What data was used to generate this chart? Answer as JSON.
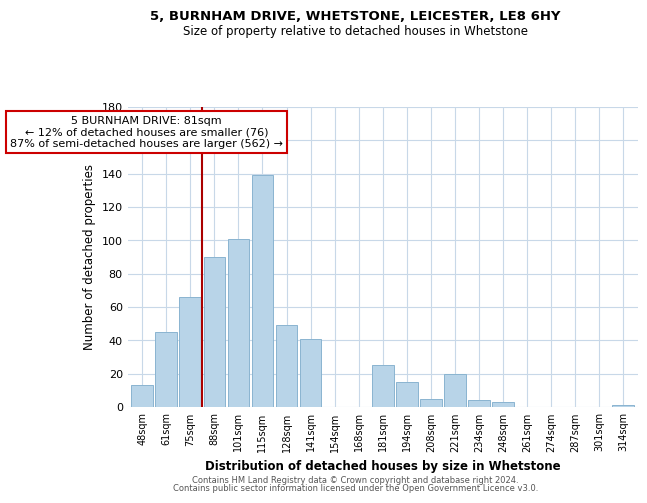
{
  "title1": "5, BURNHAM DRIVE, WHETSTONE, LEICESTER, LE8 6HY",
  "title2": "Size of property relative to detached houses in Whetstone",
  "xlabel": "Distribution of detached houses by size in Whetstone",
  "ylabel": "Number of detached properties",
  "categories": [
    "48sqm",
    "61sqm",
    "75sqm",
    "88sqm",
    "101sqm",
    "115sqm",
    "128sqm",
    "141sqm",
    "154sqm",
    "168sqm",
    "181sqm",
    "194sqm",
    "208sqm",
    "221sqm",
    "234sqm",
    "248sqm",
    "261sqm",
    "274sqm",
    "287sqm",
    "301sqm",
    "314sqm"
  ],
  "values": [
    13,
    45,
    66,
    90,
    101,
    139,
    49,
    41,
    0,
    0,
    25,
    15,
    5,
    20,
    4,
    3,
    0,
    0,
    0,
    0,
    1
  ],
  "bar_color": "#b8d4e8",
  "bar_edge_color": "#8ab4d0",
  "vline_color": "#aa0000",
  "annotation_text": "5 BURNHAM DRIVE: 81sqm\n← 12% of detached houses are smaller (76)\n87% of semi-detached houses are larger (562) →",
  "annotation_box_color": "#ffffff",
  "annotation_box_edge": "#cc0000",
  "ylim": [
    0,
    180
  ],
  "yticks": [
    0,
    20,
    40,
    60,
    80,
    100,
    120,
    140,
    160,
    180
  ],
  "footer1": "Contains HM Land Registry data © Crown copyright and database right 2024.",
  "footer2": "Contains public sector information licensed under the Open Government Licence v3.0.",
  "bg_color": "#ffffff",
  "grid_color": "#c8d8e8"
}
